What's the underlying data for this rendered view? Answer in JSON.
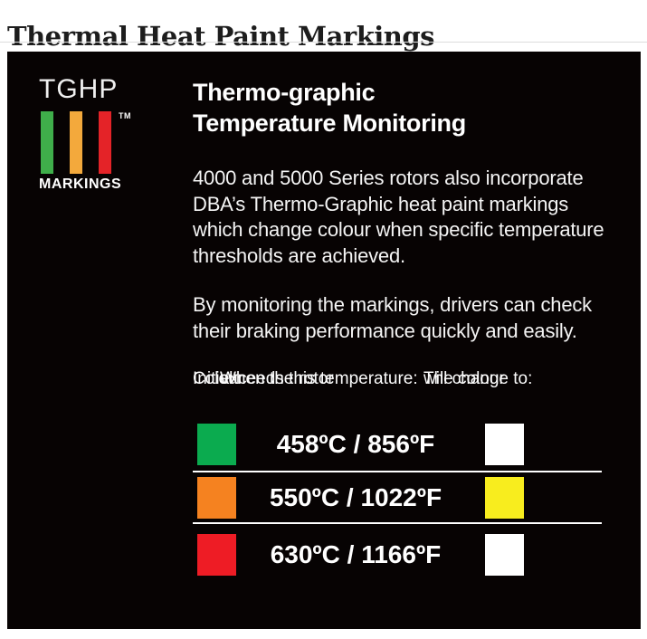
{
  "page": {
    "title": "Thermal Heat Paint Markings"
  },
  "colors": {
    "panel_bg": "#070303",
    "divider": "#ffffff",
    "logo_green": "#3fae4a",
    "logo_amber": "#f3a93c",
    "logo_red": "#e42328"
  },
  "panel": {
    "logo": {
      "name": "TGHP",
      "tm": "TM",
      "caption": "MARKINGS",
      "bars": [
        {
          "label": "green-bar",
          "color": "#3fae4a"
        },
        {
          "label": "amber-bar",
          "color": "#f3a93c"
        },
        {
          "label": "red-bar",
          "color": "#e42328"
        }
      ]
    },
    "heading_line1": "Thermo-graphic",
    "heading_line2": "Temperature Monitoring",
    "paragraph1": "4000 and 5000 Series rotors also incorporate\nDBA’s Thermo-Graphic heat paint markings\nwhich change colour when specific temperature\nthresholds are achieved.",
    "paragraph2": "By monitoring the markings, drivers can check\ntheir braking performance quickly and easily.",
    "table": {
      "headers": [
        {
          "line1": "Initial",
          "line2": "Colour"
        },
        {
          "line1": "When the rotor",
          "line2": "exceeds this temperature:"
        },
        {
          "line1": "The colour",
          "line2": "will change to:"
        }
      ],
      "rows": [
        {
          "initial_color": "#0bab4f",
          "temperature": "458ºC / 856ºF",
          "change_color": "#ffffff"
        },
        {
          "initial_color": "#f58220",
          "temperature": "550ºC / 1022ºF",
          "change_color": "#f8ed1e"
        },
        {
          "initial_color": "#ee1c25",
          "temperature": "630ºC / 1166ºF",
          "change_color": "#ffffff"
        }
      ]
    }
  }
}
